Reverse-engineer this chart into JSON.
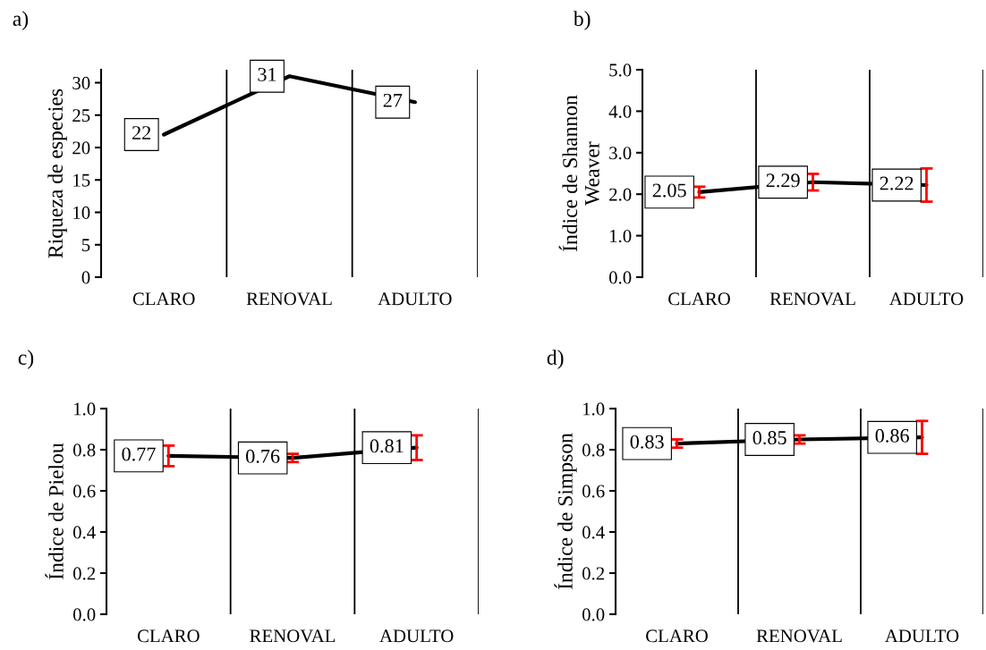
{
  "chart_data": [
    {
      "type": "line",
      "title": "a)",
      "ylabel": "Riqueza de especies",
      "categories": [
        "CLARO",
        "RENOVAL",
        "ADULTO"
      ],
      "ylim": [
        0,
        32
      ],
      "yticks": [
        0,
        5,
        10,
        15,
        20,
        25,
        30
      ],
      "grid": "x",
      "data_labels": true,
      "series": [
        {
          "color": "#000000",
          "values": [
            22,
            31,
            27
          ]
        }
      ]
    },
    {
      "type": "line",
      "title": "b)",
      "ylabel": "Índice de Shannon\nWeaver",
      "categories": [
        "CLARO",
        "RENOVAL",
        "ADULTO"
      ],
      "ylim": [
        0,
        5
      ],
      "yticks": [
        {
          "value": 0,
          "label": "0.0"
        },
        {
          "value": 1,
          "label": "1.0"
        },
        {
          "value": 2,
          "label": "2.0"
        },
        {
          "value": 3,
          "label": "3.0"
        },
        {
          "value": 4,
          "label": "4.0"
        },
        {
          "value": 5,
          "label": "5.0"
        }
      ],
      "grid": "x",
      "data_labels": true,
      "series": [
        {
          "color": "#000000",
          "values": [
            2.05,
            2.29,
            2.22
          ],
          "errors": [
            0.13,
            0.2,
            0.4
          ]
        }
      ]
    },
    {
      "type": "line",
      "title": "c)",
      "ylabel": "Índice de Pielou",
      "categories": [
        "CLARO",
        "RENOVAL",
        "ADULTO"
      ],
      "ylim": [
        0,
        1
      ],
      "yticks": [
        {
          "value": 0,
          "label": "0.0"
        },
        0.2,
        0.4,
        0.6,
        0.8,
        {
          "value": 1,
          "label": "1.0"
        }
      ],
      "grid": "x",
      "data_labels": true,
      "series": [
        {
          "color": "#000000",
          "values": [
            0.77,
            0.76,
            0.81
          ],
          "errors": [
            0.05,
            0.02,
            0.06
          ]
        }
      ]
    },
    {
      "type": "line",
      "title": "d)",
      "ylabel": "Índice de Simpson",
      "categories": [
        "CLARO",
        "RENOVAL",
        "ADULTO"
      ],
      "ylim": [
        0,
        1
      ],
      "yticks": [
        {
          "value": 0,
          "label": "0.0"
        },
        0.2,
        0.4,
        0.6,
        0.8,
        {
          "value": 1,
          "label": "1.0"
        }
      ],
      "grid": "x",
      "data_labels": true,
      "series": [
        {
          "color": "#000000",
          "values": [
            0.83,
            0.85,
            0.86
          ],
          "errors": [
            0.02,
            0.02,
            0.08
          ]
        }
      ]
    }
  ]
}
